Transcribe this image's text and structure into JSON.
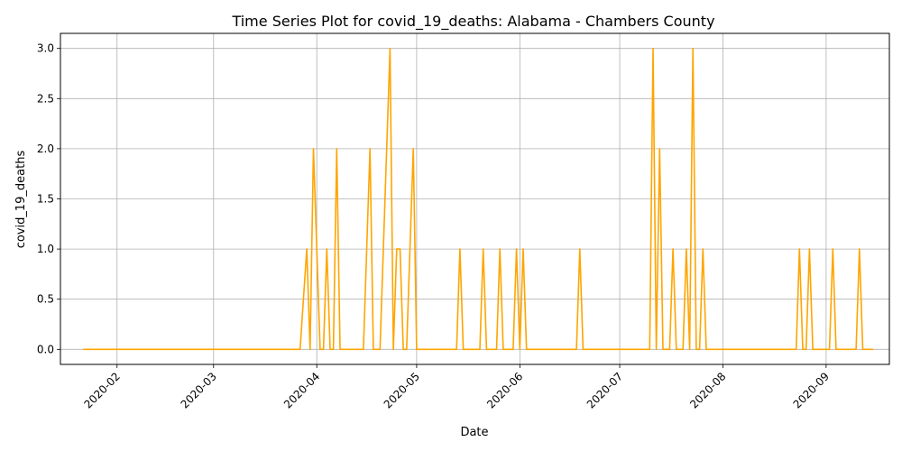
{
  "chart_data": {
    "type": "line",
    "title": "Time Series Plot for covid_19_deaths: Alabama - Chambers County",
    "xlabel": "Date",
    "ylabel": "covid_19_deaths",
    "x_axis_type": "date",
    "xlim": [
      "2020-01-15",
      "2020-09-20"
    ],
    "ylim": [
      -0.15,
      3.15
    ],
    "grid": true,
    "line_color": "#ffa500",
    "x_ticks": [
      "2020-02-01",
      "2020-03-01",
      "2020-04-01",
      "2020-05-01",
      "2020-06-01",
      "2020-07-01",
      "2020-08-01",
      "2020-09-01"
    ],
    "x_tick_labels": [
      "2020-02",
      "2020-03",
      "2020-04",
      "2020-05",
      "2020-06",
      "2020-07",
      "2020-08",
      "2020-09"
    ],
    "y_ticks": [
      0.0,
      0.5,
      1.0,
      1.5,
      2.0,
      2.5,
      3.0
    ],
    "y_tick_labels": [
      "0.0",
      "0.5",
      "1.0",
      "1.5",
      "2.0",
      "2.5",
      "3.0"
    ],
    "series": [
      {
        "points": [
          [
            "2020-01-22",
            0
          ],
          [
            "2020-03-27",
            0
          ],
          [
            "2020-03-29",
            1
          ],
          [
            "2020-03-30",
            0
          ],
          [
            "2020-03-31",
            2
          ],
          [
            "2020-04-02",
            0
          ],
          [
            "2020-04-03",
            0
          ],
          [
            "2020-04-04",
            1
          ],
          [
            "2020-04-05",
            0
          ],
          [
            "2020-04-06",
            0
          ],
          [
            "2020-04-07",
            2
          ],
          [
            "2020-04-08",
            0
          ],
          [
            "2020-04-15",
            0
          ],
          [
            "2020-04-17",
            2
          ],
          [
            "2020-04-18",
            0
          ],
          [
            "2020-04-20",
            0
          ],
          [
            "2020-04-22",
            2
          ],
          [
            "2020-04-23",
            3
          ],
          [
            "2020-04-24",
            0
          ],
          [
            "2020-04-25",
            1
          ],
          [
            "2020-04-26",
            1
          ],
          [
            "2020-04-27",
            0
          ],
          [
            "2020-04-28",
            0
          ],
          [
            "2020-04-30",
            2
          ],
          [
            "2020-05-01",
            0
          ],
          [
            "2020-05-13",
            0
          ],
          [
            "2020-05-14",
            1
          ],
          [
            "2020-05-15",
            0
          ],
          [
            "2020-05-20",
            0
          ],
          [
            "2020-05-21",
            1
          ],
          [
            "2020-05-22",
            0
          ],
          [
            "2020-05-25",
            0
          ],
          [
            "2020-05-26",
            1
          ],
          [
            "2020-05-27",
            0
          ],
          [
            "2020-05-30",
            0
          ],
          [
            "2020-05-31",
            1
          ],
          [
            "2020-06-01",
            0
          ],
          [
            "2020-06-02",
            1
          ],
          [
            "2020-06-03",
            0
          ],
          [
            "2020-06-18",
            0
          ],
          [
            "2020-06-19",
            1
          ],
          [
            "2020-06-20",
            0
          ],
          [
            "2020-07-10",
            0
          ],
          [
            "2020-07-11",
            3
          ],
          [
            "2020-07-12",
            0
          ],
          [
            "2020-07-13",
            2
          ],
          [
            "2020-07-14",
            0
          ],
          [
            "2020-07-16",
            0
          ],
          [
            "2020-07-17",
            1
          ],
          [
            "2020-07-18",
            0
          ],
          [
            "2020-07-20",
            0
          ],
          [
            "2020-07-21",
            1
          ],
          [
            "2020-07-22",
            0
          ],
          [
            "2020-07-23",
            3
          ],
          [
            "2020-07-24",
            0
          ],
          [
            "2020-07-25",
            0
          ],
          [
            "2020-07-26",
            1
          ],
          [
            "2020-07-27",
            0
          ],
          [
            "2020-08-23",
            0
          ],
          [
            "2020-08-24",
            1
          ],
          [
            "2020-08-25",
            0
          ],
          [
            "2020-08-26",
            0
          ],
          [
            "2020-08-27",
            1
          ],
          [
            "2020-08-28",
            0
          ],
          [
            "2020-09-02",
            0
          ],
          [
            "2020-09-03",
            1
          ],
          [
            "2020-09-04",
            0
          ],
          [
            "2020-09-10",
            0
          ],
          [
            "2020-09-11",
            1
          ],
          [
            "2020-09-12",
            0
          ],
          [
            "2020-09-15",
            0
          ]
        ]
      }
    ]
  }
}
